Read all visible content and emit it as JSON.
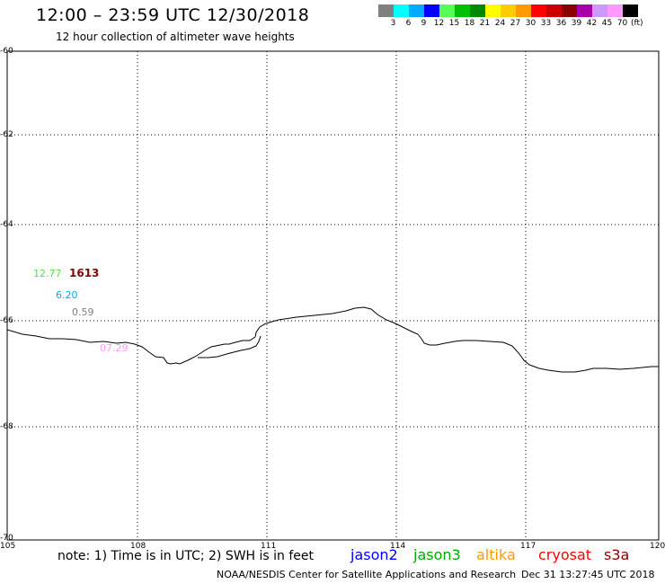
{
  "title": "12:00 – 23:59 UTC 12/30/2018",
  "subtitle": "12 hour collection of altimeter wave heights",
  "colorbar": {
    "labels": [
      "3",
      "6",
      "9",
      "12",
      "15",
      "18",
      "21",
      "24",
      "27",
      "30",
      "33",
      "36",
      "39",
      "42",
      "45",
      "70"
    ],
    "unit": "(ft)",
    "colors": [
      "#808080",
      "#00ffff",
      "#00aaff",
      "#0000ff",
      "#55ff55",
      "#00c000",
      "#008800",
      "#ffff00",
      "#ffcc00",
      "#ff9900",
      "#ff0000",
      "#cc0000",
      "#880000",
      "#aa00aa",
      "#cc99ff",
      "#ff99ff",
      "#000000"
    ]
  },
  "map": {
    "lat_labels": [
      "-60",
      "-62",
      "-64",
      "-66",
      "-68",
      "-70"
    ],
    "lon_labels": [
      "105",
      "108",
      "111",
      "114",
      "117",
      "120"
    ]
  },
  "observations": [
    {
      "text": "12.77",
      "color": "#55dd55"
    },
    {
      "text": "1613",
      "color": "#880000"
    },
    {
      "text": "6.20",
      "color": "#00aaff"
    },
    {
      "text": "0.59",
      "color": "#808080"
    },
    {
      "text": "07.29",
      "color": "#ff99ff"
    }
  ],
  "note": "note: 1) Time is in UTC; 2) SWH is in feet",
  "satellites": [
    {
      "name": "jason2",
      "color": "#0000ff"
    },
    {
      "name": "jason3",
      "color": "#00aa00"
    },
    {
      "name": "altika",
      "color": "#ff9900"
    },
    {
      "name": "cryosat",
      "color": "#ff0000"
    },
    {
      "name": "s3a",
      "color": "#880000"
    }
  ],
  "footer": "NOAA/NESDIS Center for Satellite Applications and Research",
  "timestamp": "Dec 31 13:27:45 UTC 2018"
}
